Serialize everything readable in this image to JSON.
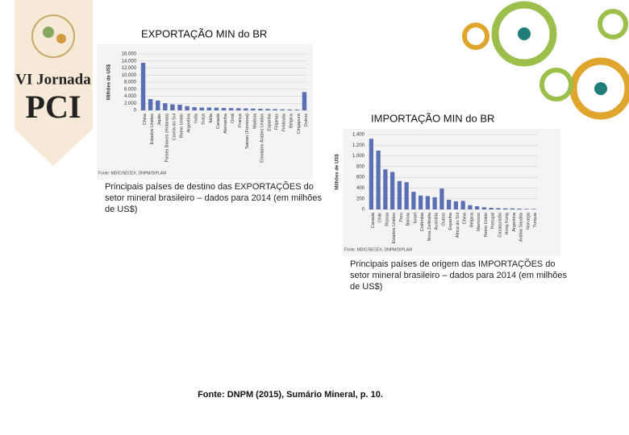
{
  "logo": {
    "line1": "VI Jornada",
    "line2": "PCI"
  },
  "chart_data": [
    {
      "type": "bar",
      "title": "EXPORTAÇÃO MIN do BR",
      "ylabel": "Milhões de US$",
      "categories": [
        "China",
        "Estados Unidos",
        "Japão",
        "Países Baixos (Holanda)",
        "Coreia do Sul",
        "Reino Unido",
        "Argentina",
        "Índia",
        "Suíça",
        "Itália",
        "Canadá",
        "Alemanha",
        "Omã",
        "França",
        "Taiwan (Formosa)",
        "Malásia",
        "Emirados Árabes Unidos",
        "Espanha",
        "Filipinas",
        "Finlândia",
        "Bélgica",
        "Cingapura",
        "Outros"
      ],
      "values": [
        13500,
        3200,
        2800,
        2000,
        1700,
        1600,
        1200,
        900,
        800,
        800,
        750,
        700,
        650,
        600,
        550,
        500,
        450,
        400,
        350,
        300,
        250,
        200,
        5200
      ],
      "color": "#5b6fb5",
      "ylim": [
        0,
        16000
      ],
      "yticks": [
        0,
        {
          "value": 2000,
          "label": "2.000"
        },
        {
          "value": 4000,
          "label": "4.000"
        },
        {
          "value": 6000,
          "label": "6.000"
        },
        {
          "value": 8000,
          "label": "8.000"
        },
        {
          "value": 10000,
          "label": "10.000"
        },
        {
          "value": 12000,
          "label": "12.000"
        },
        {
          "value": 14000,
          "label": "14.000"
        },
        {
          "value": 16000,
          "label": "16.000"
        }
      ],
      "grid": true,
      "source": "Fonte: MDIC/SECEX, DNPM/DIPLAM",
      "caption": "Principais países de destino das EXPORTAÇÕES do setor mineral brasileiro – dados para 2014 (em milhões de US$)"
    },
    {
      "type": "bar",
      "title": "IMPORTAÇÃO MIN do BR",
      "ylabel": "Milhões de US$",
      "categories": [
        "Canadá",
        "Chile",
        "Rússia",
        "Estados Unidos",
        "Peru",
        "Bolívia",
        "Israel",
        "Colômbia",
        "Nova Zelândia",
        "Austrália",
        "Outros",
        "Espanha",
        "África do Sul",
        "China",
        "Bélgica",
        "Marrocos",
        "Reino Unido",
        "Portugal",
        "Cazaquistão",
        "Hong Kong",
        "Argentina",
        "Arábia Saudita",
        "Noruega",
        "Turquia"
      ],
      "values": [
        1320,
        1100,
        750,
        700,
        530,
        510,
        330,
        260,
        250,
        230,
        390,
        180,
        150,
        160,
        80,
        60,
        40,
        30,
        25,
        20,
        20,
        15,
        10,
        10
      ],
      "color": "#5b6fb5",
      "ylim": [
        0,
        1400
      ],
      "yticks": [
        0,
        200,
        400,
        600,
        800,
        {
          "value": 1000,
          "label": "1.000"
        },
        {
          "value": 1200,
          "label": "1.200"
        },
        {
          "value": 1400,
          "label": "1.400"
        }
      ],
      "grid": true,
      "source": "Fonte: MDIC/SECEX, DNPM/DIPLAM",
      "caption": "Principais países de origem das IMPORTAÇÕES do setor mineral brasileiro – dados para 2014 (em milhões de US$)"
    }
  ],
  "footer": "Fonte: DNPM (2015), Sumário Mineral, p. 10."
}
